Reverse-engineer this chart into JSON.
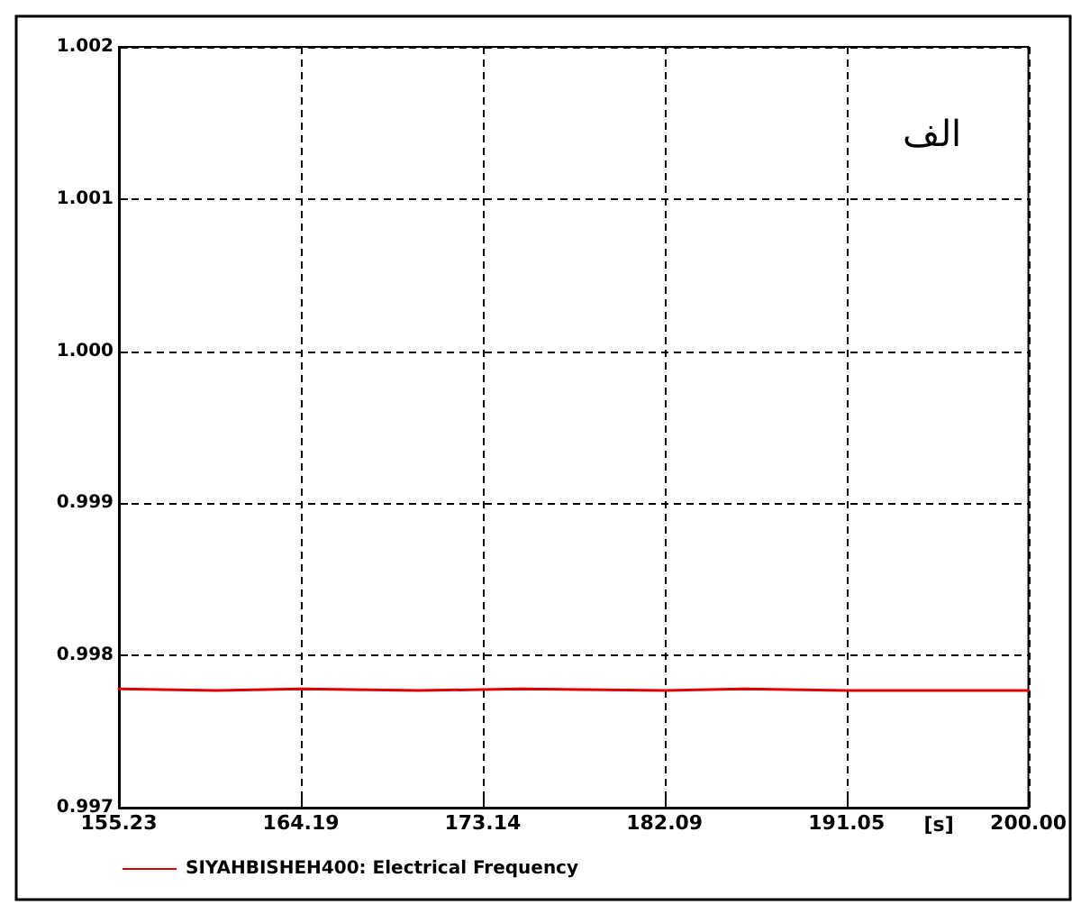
{
  "chart_data": {
    "type": "line",
    "xlabel": "[s]",
    "annotations": [
      "الف"
    ],
    "x": [
      155.23,
      160,
      164.19,
      170,
      175,
      182.09,
      186,
      191.05,
      195,
      200
    ],
    "series": [
      {
        "name": "SIYAHBISHEH400: Electrical Frequency",
        "color": "#e00000",
        "values": [
          0.99778,
          0.99777,
          0.99778,
          0.99777,
          0.99778,
          0.99777,
          0.99778,
          0.99777,
          0.99777,
          0.99777
        ]
      }
    ],
    "xlim": [
      155.23,
      200.0
    ],
    "xticks": [
      155.23,
      164.19,
      173.14,
      182.09,
      191.05,
      {
        "value": 200.0,
        "label": "200.00"
      }
    ],
    "ylim": [
      0.997,
      1.002
    ],
    "yticks": [
      {
        "value": 0.997,
        "label": "0.997"
      },
      {
        "value": 0.998,
        "label": "0.998"
      },
      {
        "value": 0.999,
        "label": "0.999"
      },
      {
        "value": 1.0,
        "label": "1.000"
      },
      {
        "value": 1.001,
        "label": "1.001"
      },
      {
        "value": 1.002,
        "label": "1.002"
      }
    ],
    "grid": true,
    "legend": "bottom left",
    "marker": "none",
    "line_style": "solid"
  }
}
